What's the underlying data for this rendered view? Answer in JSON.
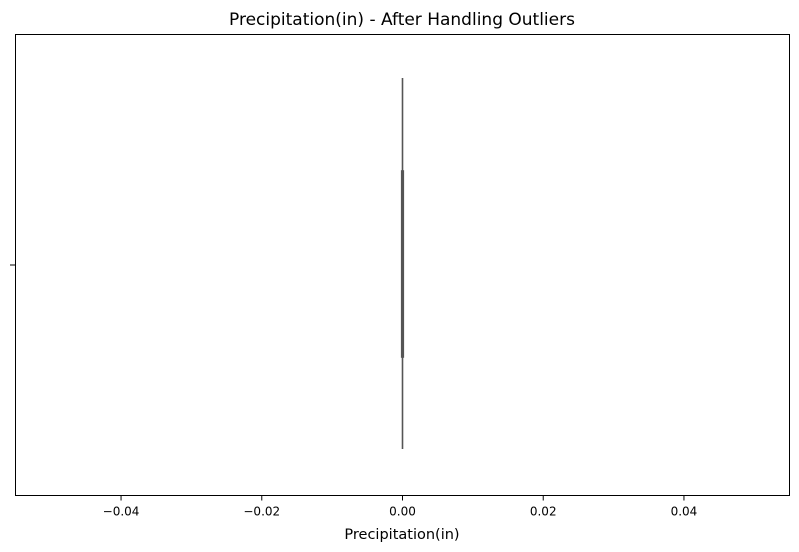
{
  "chart_data": {
    "type": "box",
    "title": "Precipitation(in) - After Handling Outliers",
    "xlabel": "Precipitation(in)",
    "ylabel": "",
    "xlim": [
      -0.055,
      0.055
    ],
    "xticks": [
      -0.04,
      -0.02,
      0.0,
      0.02,
      0.04
    ],
    "xtick_labels": [
      "−0.04",
      "−0.02",
      "0.00",
      "0.02",
      "0.04"
    ],
    "grid": false,
    "box": {
      "whisker_low": 0.0,
      "q1": 0.0,
      "median": 0.0,
      "q3": 0.0,
      "whisker_high": 0.0
    },
    "colors": {
      "line": "#555555",
      "axes": "#000000"
    }
  }
}
